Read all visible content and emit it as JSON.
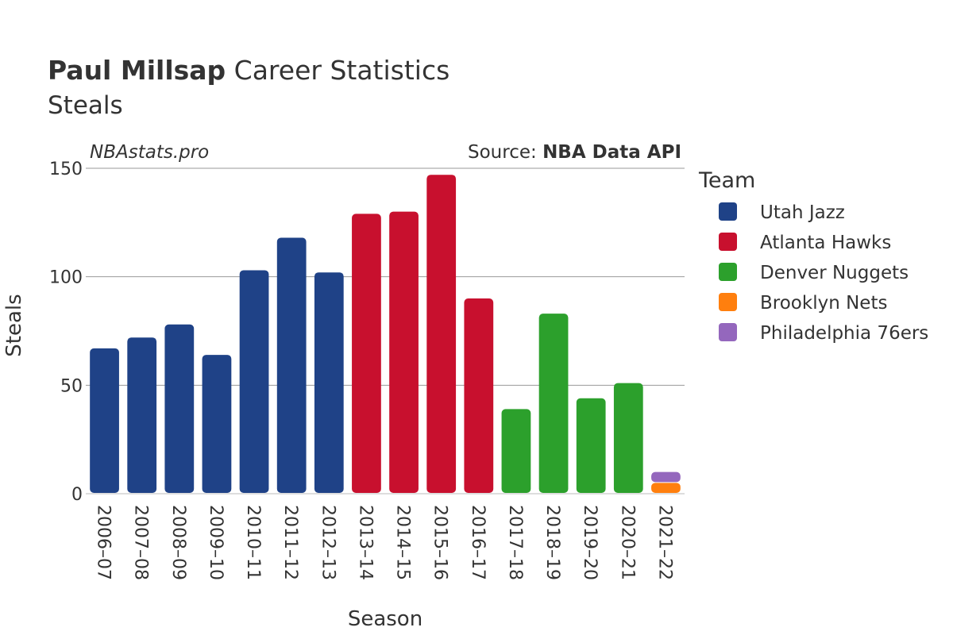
{
  "header": {
    "player_name": "Paul Millsap",
    "title_suffix": "Career Statistics",
    "subtitle": "Steals"
  },
  "watermark": {
    "site": "NBAstats.pro",
    "source_label": "Source:",
    "source_name": "NBA Data API"
  },
  "chart_data": {
    "type": "bar",
    "stacked": true,
    "title": "Paul Millsap Career Statistics",
    "subtitle": "Steals",
    "xlabel": "Season",
    "ylabel": "Steals",
    "ylim": [
      0,
      150
    ],
    "yticks": [
      0,
      50,
      100,
      150
    ],
    "grid": true,
    "legend_title": "Team",
    "legend_position": "right",
    "categories": [
      "2006–07",
      "2007–08",
      "2008–09",
      "2009–10",
      "2010–11",
      "2011–12",
      "2012–13",
      "2013–14",
      "2014–15",
      "2015–16",
      "2016–17",
      "2017–18",
      "2018–19",
      "2019–20",
      "2020–21",
      "2021–22"
    ],
    "series": [
      {
        "name": "Utah Jazz",
        "color": "#1f4287",
        "values": [
          67,
          72,
          78,
          64,
          103,
          118,
          102,
          0,
          0,
          0,
          0,
          0,
          0,
          0,
          0,
          0
        ]
      },
      {
        "name": "Atlanta Hawks",
        "color": "#c8102e",
        "values": [
          0,
          0,
          0,
          0,
          0,
          0,
          0,
          129,
          130,
          147,
          90,
          0,
          0,
          0,
          0,
          0
        ]
      },
      {
        "name": "Denver Nuggets",
        "color": "#2ca02c",
        "values": [
          0,
          0,
          0,
          0,
          0,
          0,
          0,
          0,
          0,
          0,
          0,
          39,
          83,
          44,
          51,
          0
        ]
      },
      {
        "name": "Brooklyn Nets",
        "color": "#ff7f0e",
        "values": [
          0,
          0,
          0,
          0,
          0,
          0,
          0,
          0,
          0,
          0,
          0,
          0,
          0,
          0,
          0,
          5
        ]
      },
      {
        "name": "Philadelphia 76ers",
        "color": "#9467bd",
        "values": [
          0,
          0,
          0,
          0,
          0,
          0,
          0,
          0,
          0,
          0,
          0,
          0,
          0,
          0,
          0,
          5
        ]
      }
    ]
  }
}
